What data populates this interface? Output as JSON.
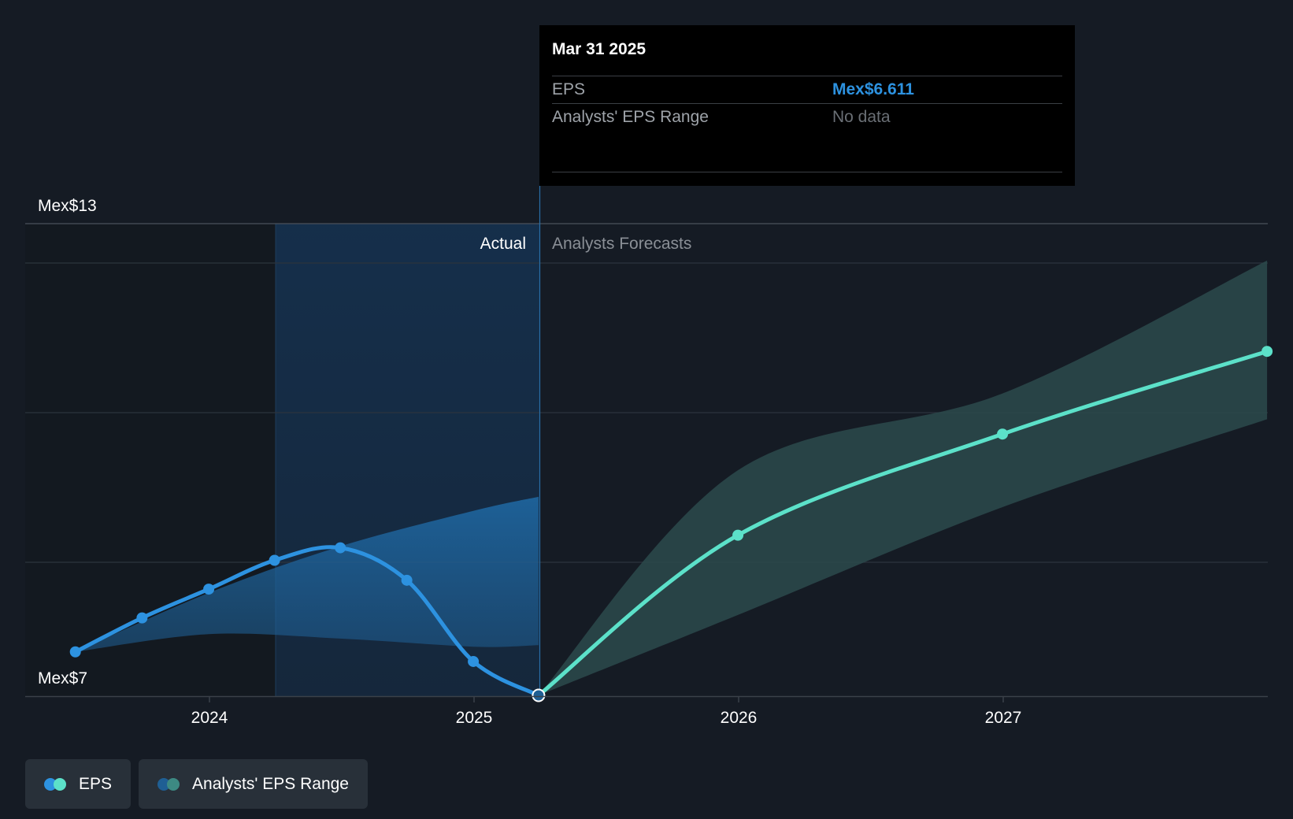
{
  "chart_data": {
    "type": "line",
    "title": "",
    "xlabel": "",
    "ylabel": "",
    "x_ticks": [
      "2024",
      "2025",
      "2026",
      "2027"
    ],
    "y_labels": {
      "top": "Mex$13",
      "bottom": "Mex$7"
    },
    "ylim": [
      6.6,
      13
    ],
    "grid": true,
    "region_labels": {
      "actual": "Actual",
      "forecast": "Analysts Forecasts"
    },
    "divider_date": "2025-03-31",
    "series": [
      {
        "name": "EPS",
        "segment": "actual",
        "color": "#2d92e0",
        "points": [
          {
            "date": "2023-06-30",
            "value": 7.2
          },
          {
            "date": "2023-09-30",
            "value": 7.66
          },
          {
            "date": "2023-12-31",
            "value": 8.05
          },
          {
            "date": "2024-03-31",
            "value": 8.44
          },
          {
            "date": "2024-06-30",
            "value": 8.61
          },
          {
            "date": "2024-09-30",
            "value": 8.17
          },
          {
            "date": "2024-12-31",
            "value": 7.07
          },
          {
            "date": "2025-03-31",
            "value": 6.611
          }
        ]
      },
      {
        "name": "EPS",
        "segment": "forecast",
        "color": "#5ce1c9",
        "points": [
          {
            "date": "2025-03-31",
            "value": 6.611
          },
          {
            "date": "2025-12-31",
            "value": 8.78
          },
          {
            "date": "2026-12-31",
            "value": 10.15
          },
          {
            "date": "2027-12-31",
            "value": 11.27
          }
        ]
      }
    ],
    "range_series": [
      {
        "name": "Analysts' EPS Range",
        "segment": "actual",
        "color": "#1f5f94",
        "points": [
          {
            "date": "2023-06-30",
            "low": 7.2,
            "high": 7.2
          },
          {
            "date": "2023-12-31",
            "low": 7.44,
            "high": 8.0
          },
          {
            "date": "2024-06-30",
            "low": 7.38,
            "high": 8.63
          },
          {
            "date": "2024-12-31",
            "low": 7.27,
            "high": 9.11
          },
          {
            "date": "2025-03-31",
            "low": 7.29,
            "high": 9.3
          }
        ]
      },
      {
        "name": "Analysts' EPS Range",
        "segment": "forecast",
        "color": "#2b4a4c",
        "points": [
          {
            "date": "2025-03-31",
            "low": 6.611,
            "high": 6.611
          },
          {
            "date": "2025-12-31",
            "low": 7.7,
            "high": 9.66
          },
          {
            "date": "2026-12-31",
            "low": 9.16,
            "high": 10.7
          },
          {
            "date": "2027-12-31",
            "low": 10.35,
            "high": 12.5
          }
        ]
      }
    ]
  },
  "tooltip": {
    "date": "Mar 31 2025",
    "rows": [
      {
        "label": "EPS",
        "value": "Mex$6.611"
      },
      {
        "label": "Analysts' EPS Range",
        "value": "No data"
      }
    ]
  },
  "legend": [
    {
      "label": "EPS",
      "colors": [
        "#2d92e0",
        "#5ce1c9"
      ]
    },
    {
      "label": "Analysts' EPS Range",
      "colors": [
        "#1f5f94",
        "#3d8a83"
      ]
    }
  ]
}
